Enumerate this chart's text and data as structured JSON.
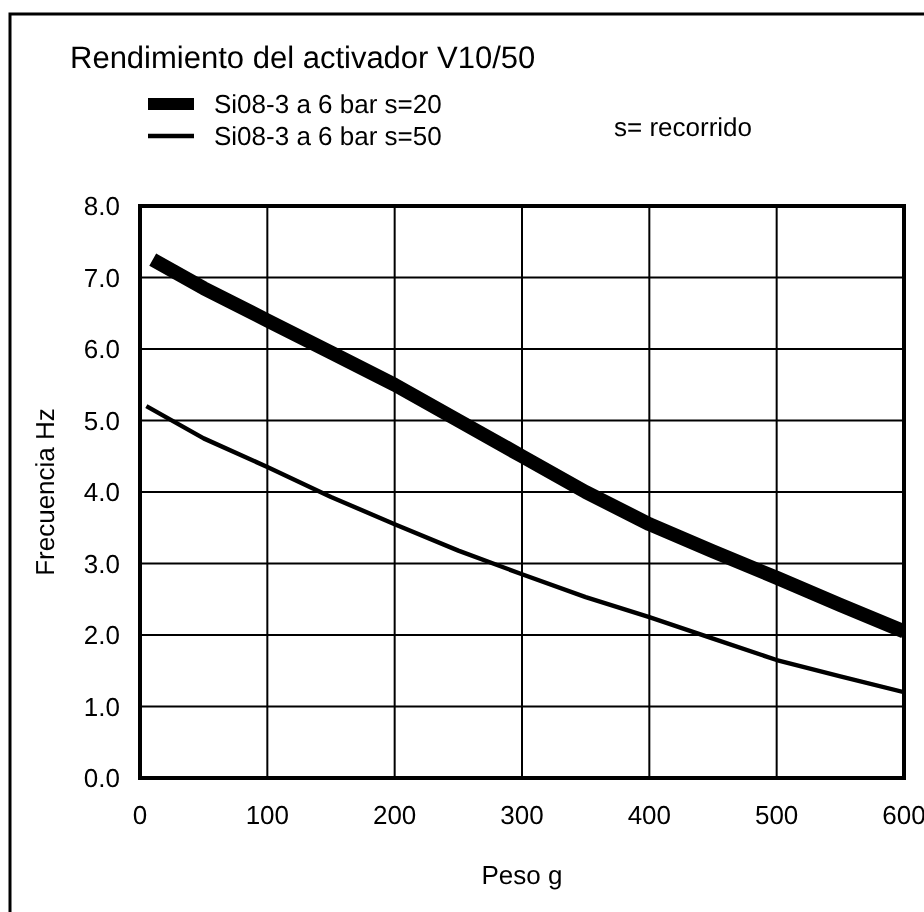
{
  "chart_data": {
    "type": "line",
    "title": "Rendimiento del activador V10/50",
    "xlabel": "Peso g",
    "ylabel": "Frecuencia Hz",
    "annotations": [
      "s= recorrido"
    ],
    "series": [
      {
        "name": "Si08-3 a 6 bar  s=20",
        "color": "#000000",
        "x": [
          10,
          50,
          100,
          150,
          200,
          250,
          300,
          350,
          400,
          450,
          500,
          550,
          600
        ],
        "values": [
          7.25,
          6.85,
          6.4,
          5.95,
          5.5,
          5.0,
          4.5,
          4.0,
          3.55,
          3.17,
          2.8,
          2.42,
          2.05
        ]
      },
      {
        "name": "Si08-3 a 6 bar  s=50",
        "color": "#000000",
        "x": [
          5,
          50,
          100,
          150,
          200,
          250,
          300,
          350,
          400,
          450,
          500,
          550,
          600
        ],
        "values": [
          5.2,
          4.75,
          4.35,
          3.93,
          3.55,
          3.18,
          2.85,
          2.53,
          2.25,
          1.95,
          1.65,
          1.42,
          1.2
        ]
      }
    ],
    "xlim": [
      0,
      600
    ],
    "xticks": [
      0,
      100,
      200,
      300,
      400,
      500,
      600
    ],
    "ylim": [
      0,
      8
    ],
    "yticks": [
      {
        "value": 0,
        "label": "0.0"
      },
      {
        "value": 1,
        "label": "1.0"
      },
      {
        "value": 2,
        "label": "2.0"
      },
      {
        "value": 3,
        "label": "3.0"
      },
      {
        "value": 4,
        "label": "4.0"
      },
      {
        "value": 5,
        "label": "5.0"
      },
      {
        "value": 6,
        "label": "6.0"
      },
      {
        "value": 7,
        "label": "7.0"
      },
      {
        "value": 8,
        "label": "8.0"
      }
    ],
    "grid": true,
    "legend": "top left",
    "marker": "none",
    "line_style": "solid"
  }
}
